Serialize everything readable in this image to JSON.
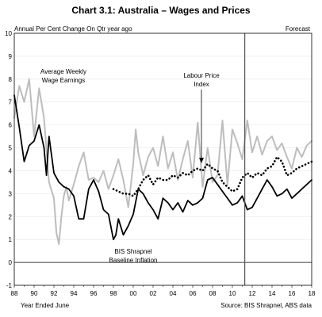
{
  "chart_data": {
    "type": "line",
    "title": "Chart 3.1: Australia – Wages and Prices",
    "ylabel": "Annual Per Cent Change On Qtr year ago",
    "xlabel": "Year Ended June",
    "source": "Source: BIS Shrapnel, ABS data",
    "forecast_label": "Forecast",
    "forecast_start": 2011.25,
    "ylim": [
      -1,
      10
    ],
    "xlim": [
      1988,
      2018
    ],
    "yticks": [
      "-1",
      "0",
      "1",
      "2",
      "3",
      "4",
      "5",
      "6",
      "7",
      "8",
      "9",
      "10"
    ],
    "xticks": [
      "88",
      "90",
      "92",
      "94",
      "96",
      "98",
      "00",
      "02",
      "04",
      "06",
      "08",
      "10",
      "12",
      "14",
      "16",
      "18"
    ],
    "annotations": {
      "awe": [
        "Average Weekly",
        "Wage Earnings"
      ],
      "lpi": [
        "Labour Price",
        "Index"
      ],
      "infl": [
        "BIS Shrapnel",
        "Baseline Inflation"
      ]
    },
    "series": [
      {
        "key": "awe",
        "color": "#bdbdbd",
        "x": [
          1988.0,
          1988.5,
          1989.0,
          1989.5,
          1990.0,
          1990.5,
          1991.0,
          1991.5,
          1992.0,
          1992.25,
          1992.5,
          1992.75,
          1993.0,
          1993.25,
          1993.5,
          1994.0,
          1994.5,
          1995.0,
          1995.5,
          1996.0,
          1996.5,
          1997.0,
          1997.5,
          1998.0,
          1998.5,
          1999.0,
          1999.5,
          2000.0,
          2000.25,
          2000.5,
          2001.0,
          2001.5,
          2002.0,
          2002.5,
          2003.0,
          2003.5,
          2004.0,
          2004.5,
          2005.0,
          2005.5,
          2006.0,
          2006.5,
          2007.0,
          2007.5,
          2008.0,
          2008.5,
          2009.0,
          2009.5,
          2010.0,
          2010.5,
          2011.0,
          2011.5,
          2012.0,
          2012.5,
          2013.0,
          2013.5,
          2014.0,
          2014.5,
          2015.0,
          2015.5,
          2016.0,
          2016.5,
          2017.0,
          2017.5,
          2018.0
        ],
        "values": [
          6.3,
          7.7,
          7.0,
          8.0,
          5.5,
          7.6,
          6.3,
          3.5,
          2.8,
          1.3,
          0.8,
          2.0,
          2.9,
          3.3,
          2.7,
          3.4,
          4.2,
          4.8,
          3.6,
          3.7,
          3.5,
          4.0,
          3.2,
          3.8,
          4.5,
          3.6,
          2.4,
          4.3,
          5.8,
          4.8,
          3.8,
          4.6,
          5.0,
          4.2,
          5.5,
          4.1,
          4.8,
          3.6,
          4.5,
          5.3,
          3.7,
          6.1,
          3.3,
          5.0,
          3.5,
          3.8,
          6.2,
          3.4,
          5.8,
          5.2,
          4.5,
          6.2,
          4.8,
          5.5,
          4.7,
          5.3,
          5.5,
          4.9,
          5.2,
          4.6,
          4.1,
          5.0,
          4.6,
          5.1,
          5.3
        ]
      },
      {
        "key": "lpi",
        "color": "#000000",
        "dashed": true,
        "x": [
          1998.0,
          1998.5,
          1999.0,
          1999.5,
          2000.0,
          2000.5,
          2001.0,
          2001.5,
          2002.0,
          2002.5,
          2003.0,
          2003.5,
          2004.0,
          2004.5,
          2005.0,
          2005.5,
          2006.0,
          2006.5,
          2007.0,
          2007.5,
          2008.0,
          2008.5,
          2009.0,
          2009.5,
          2010.0,
          2010.5,
          2011.0,
          2011.5,
          2012.0,
          2012.5,
          2013.0,
          2013.5,
          2014.0,
          2014.5,
          2015.0,
          2015.5,
          2016.0,
          2016.5,
          2017.0,
          2017.5,
          2018.0
        ],
        "values": [
          3.2,
          3.1,
          3.0,
          3.0,
          2.9,
          3.2,
          3.6,
          3.8,
          3.4,
          3.7,
          3.6,
          3.6,
          3.8,
          3.7,
          3.9,
          3.8,
          4.0,
          4.1,
          4.0,
          4.3,
          4.1,
          4.0,
          3.5,
          3.3,
          3.1,
          3.2,
          3.7,
          3.9,
          3.7,
          3.9,
          3.8,
          4.1,
          4.2,
          4.6,
          4.4,
          3.8,
          3.9,
          4.1,
          4.2,
          4.3,
          4.4
        ]
      },
      {
        "key": "infl",
        "color": "#000000",
        "x": [
          1988.0,
          1988.5,
          1989.0,
          1989.5,
          1990.0,
          1990.5,
          1991.0,
          1991.25,
          1991.5,
          1992.0,
          1992.5,
          1993.0,
          1993.5,
          1994.0,
          1994.5,
          1995.0,
          1995.5,
          1996.0,
          1996.5,
          1997.0,
          1997.5,
          1998.0,
          1998.25,
          1998.5,
          1999.0,
          1999.5,
          2000.0,
          2000.5,
          2001.0,
          2001.5,
          2002.0,
          2002.5,
          2003.0,
          2003.5,
          2004.0,
          2004.5,
          2005.0,
          2005.5,
          2006.0,
          2006.5,
          2007.0,
          2007.5,
          2008.0,
          2008.5,
          2009.0,
          2009.5,
          2010.0,
          2010.5,
          2011.0,
          2011.5,
          2012.0,
          2012.5,
          2013.0,
          2013.5,
          2014.0,
          2014.5,
          2015.0,
          2015.5,
          2016.0,
          2016.5,
          2017.0,
          2017.5,
          2018.0
        ],
        "values": [
          7.3,
          5.9,
          4.4,
          5.1,
          5.3,
          6.0,
          5.0,
          3.8,
          5.5,
          3.9,
          3.5,
          3.3,
          3.2,
          2.9,
          1.9,
          1.9,
          3.2,
          3.6,
          3.1,
          2.3,
          2.1,
          1.0,
          1.2,
          1.9,
          1.2,
          1.6,
          2.1,
          3.2,
          3.0,
          2.6,
          2.3,
          1.9,
          2.8,
          2.6,
          2.3,
          2.6,
          2.2,
          2.7,
          2.5,
          2.6,
          2.8,
          3.6,
          3.7,
          3.4,
          3.1,
          2.8,
          2.5,
          2.6,
          2.9,
          2.3,
          2.4,
          2.8,
          3.2,
          3.6,
          3.3,
          2.9,
          3.0,
          3.2,
          2.8,
          3.0,
          3.2,
          3.4,
          3.6
        ]
      }
    ]
  }
}
